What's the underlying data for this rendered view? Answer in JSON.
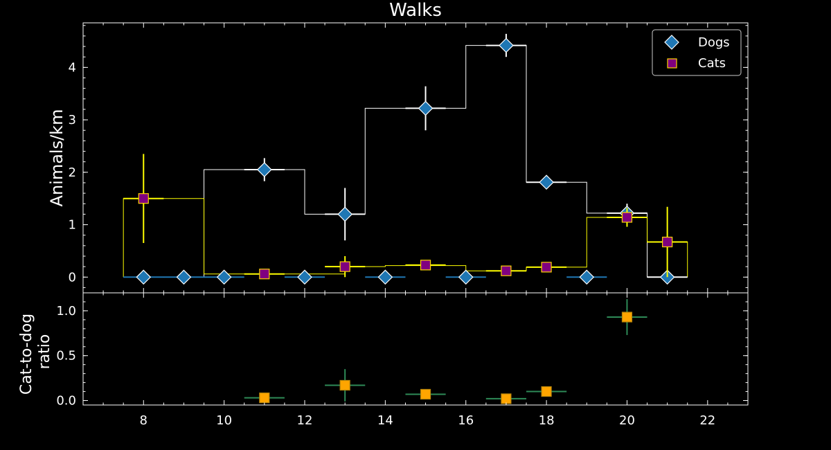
{
  "chart_data": [
    {
      "type": "scatter",
      "title": "Walks",
      "xlabel": "",
      "ylabel": "Animals/km",
      "xlim": [
        6.5,
        23
      ],
      "ylim": [
        -0.3,
        4.85
      ],
      "xticks": [
        8,
        10,
        12,
        14,
        16,
        18,
        20,
        22
      ],
      "yticks": [
        0,
        1,
        2,
        3,
        4
      ],
      "legend_position": "top-right",
      "series": [
        {
          "name": "Dogs",
          "marker": "diamond",
          "color": "#1f77b4",
          "edge_color": "#ffffff",
          "error_color": "#ffffff",
          "points": [
            {
              "x": 8,
              "y": 0,
              "xerr": 0.5,
              "yerr": 0,
              "errcolor": "#1f77b4"
            },
            {
              "x": 9,
              "y": 0,
              "xerr": 0.5,
              "yerr": 0,
              "errcolor": "#1f77b4"
            },
            {
              "x": 10,
              "y": 0,
              "xerr": 0.5,
              "yerr": 0,
              "errcolor": "#1f77b4"
            },
            {
              "x": 11,
              "y": 2.05,
              "xerr": 0.5,
              "yerr": 0.22
            },
            {
              "x": 12,
              "y": 0,
              "xerr": 0.5,
              "yerr": 0,
              "errcolor": "#1f77b4"
            },
            {
              "x": 13,
              "y": 1.2,
              "xerr": 0.5,
              "yerr": 0.5
            },
            {
              "x": 14,
              "y": 0,
              "xerr": 0.5,
              "yerr": 0,
              "errcolor": "#1f77b4"
            },
            {
              "x": 15,
              "y": 3.22,
              "xerr": 0.5,
              "yerr": 0.42
            },
            {
              "x": 16,
              "y": 0,
              "xerr": 0.5,
              "yerr": 0,
              "errcolor": "#1f77b4"
            },
            {
              "x": 17,
              "y": 4.42,
              "xerr": 0.5,
              "yerr": 0.22
            },
            {
              "x": 18,
              "y": 1.81,
              "xerr": 0.5,
              "yerr": 0.03
            },
            {
              "x": 19,
              "y": 0,
              "xerr": 0.5,
              "yerr": 0,
              "errcolor": "#1f77b4"
            },
            {
              "x": 20,
              "y": 1.22,
              "xerr": 0.5,
              "yerr": 0.18
            },
            {
              "x": 21,
              "y": 0,
              "xerr": 0.5,
              "yerr": 0
            }
          ],
          "steps": [
            [
              7.5,
              9.5,
              0
            ],
            [
              9.5,
              12,
              2.05
            ],
            [
              12,
              13.5,
              1.2
            ],
            [
              13.5,
              16,
              3.22
            ],
            [
              16,
              17.5,
              4.42
            ],
            [
              17.5,
              19,
              1.81
            ],
            [
              19,
              20.5,
              1.22
            ],
            [
              20.5,
              21.5,
              0
            ]
          ]
        },
        {
          "name": "Cats",
          "marker": "square",
          "color": "#800080",
          "edge_color": "#ffd700",
          "error_color": "#ffff00",
          "points": [
            {
              "x": 8,
              "y": 1.5,
              "xerr": 0.5,
              "yerr": 0.85
            },
            {
              "x": 11,
              "y": 0.06,
              "xerr": 0.5,
              "yerr": 0.03
            },
            {
              "x": 13,
              "y": 0.2,
              "xerr": 0.5,
              "yerr": 0.2
            },
            {
              "x": 15,
              "y": 0.23,
              "xerr": 0.5,
              "yerr": 0.07
            },
            {
              "x": 17,
              "y": 0.12,
              "xerr": 0.5,
              "yerr": 0.03
            },
            {
              "x": 18,
              "y": 0.19,
              "xerr": 0.5,
              "yerr": 0.03
            },
            {
              "x": 20,
              "y": 1.14,
              "xerr": 0.5,
              "yerr": 0.18
            },
            {
              "x": 21,
              "y": 0.67,
              "xerr": 0.5,
              "yerr": 0.67
            }
          ],
          "steps": [
            [
              7.5,
              9.5,
              1.5
            ],
            [
              9.5,
              12,
              0.06
            ],
            [
              12,
              13,
              0.06
            ],
            [
              13,
              14,
              0.2
            ],
            [
              14,
              16,
              0.22
            ],
            [
              16,
              17.5,
              0.12
            ],
            [
              17.5,
              19,
              0.19
            ],
            [
              19,
              20.5,
              1.14
            ],
            [
              20.5,
              21.5,
              0.67
            ]
          ]
        }
      ]
    },
    {
      "type": "scatter",
      "title": "",
      "xlabel": "",
      "ylabel": "Cat-to-dog ratio",
      "ylabel_lines": [
        "Cat-to-dog",
        "ratio"
      ],
      "xlim": [
        6.5,
        23
      ],
      "ylim": [
        -0.05,
        1.2
      ],
      "xticks": [
        8,
        10,
        12,
        14,
        16,
        18,
        20,
        22
      ],
      "yticks": [
        0.0,
        0.5,
        1.0
      ],
      "ytick_labels": [
        "0.0",
        "0.5",
        "1.0"
      ],
      "series": [
        {
          "marker": "square",
          "color": "#ffa500",
          "edge_color": "#b8860b",
          "error_color": "#2e8b57",
          "points": [
            {
              "x": 11,
              "y": 0.03,
              "xerr": 0.5,
              "yerr": 0.01
            },
            {
              "x": 13,
              "y": 0.17,
              "xerr": 0.5,
              "yerr": 0.18
            },
            {
              "x": 15,
              "y": 0.07,
              "xerr": 0.5,
              "yerr": 0.01
            },
            {
              "x": 17,
              "y": 0.02,
              "xerr": 0.5,
              "yerr": 0.01
            },
            {
              "x": 18,
              "y": 0.1,
              "xerr": 0.5,
              "yerr": 0.01
            },
            {
              "x": 20,
              "y": 0.93,
              "xerr": 0.5,
              "yerr": 0.2
            }
          ]
        }
      ]
    }
  ]
}
